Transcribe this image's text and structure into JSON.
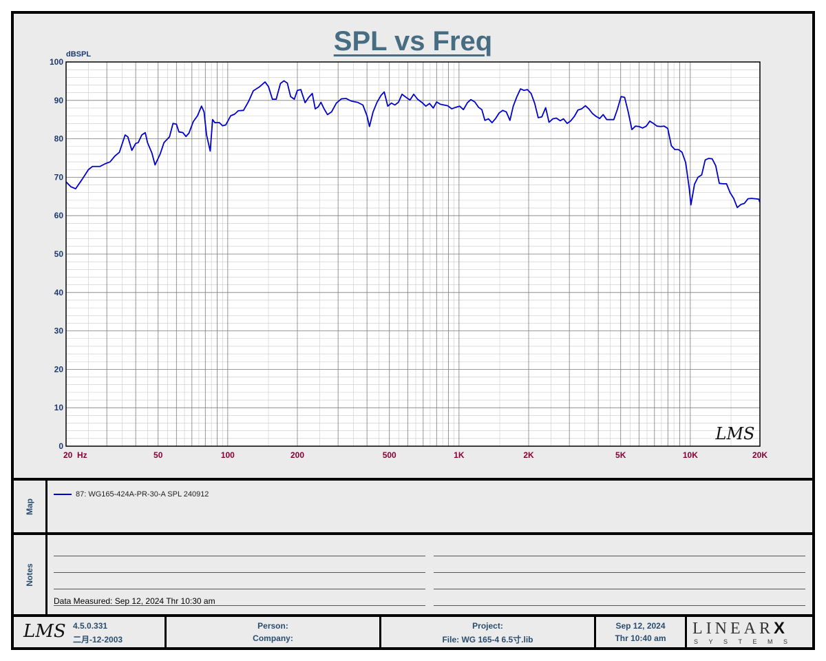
{
  "chart_data": {
    "type": "line",
    "title": "SPL vs Freq",
    "ylabel": "dBSPL",
    "xlabel": "",
    "xscale": "log",
    "xlim": [
      20,
      20000
    ],
    "ylim": [
      0,
      100
    ],
    "grid": true,
    "y_ticks": [
      0,
      10,
      20,
      30,
      40,
      50,
      60,
      70,
      80,
      90,
      100
    ],
    "x_tick_labels": [
      {
        "value": 20,
        "label": "20  Hz"
      },
      {
        "value": 50,
        "label": "50"
      },
      {
        "value": 100,
        "label": "100"
      },
      {
        "value": 200,
        "label": "200"
      },
      {
        "value": 500,
        "label": "500"
      },
      {
        "value": 1000,
        "label": "1K"
      },
      {
        "value": 2000,
        "label": "2K"
      },
      {
        "value": 5000,
        "label": "5K"
      },
      {
        "value": 10000,
        "label": "10K"
      },
      {
        "value": 20000,
        "label": "20K"
      }
    ],
    "series": [
      {
        "name": "87: WG165-424A-PR-30-A SPL 240912",
        "color": "#0000cc",
        "points": [
          [
            20,
            68.8
          ],
          [
            21,
            67.5
          ],
          [
            22,
            67.0
          ],
          [
            23.5,
            69.5
          ],
          [
            25,
            72.0
          ],
          [
            26,
            72.8
          ],
          [
            28,
            72.8
          ],
          [
            29.5,
            73.5
          ],
          [
            31,
            74.0
          ],
          [
            32.5,
            75.5
          ],
          [
            34,
            76.5
          ],
          [
            36,
            81.0
          ],
          [
            37,
            80.5
          ],
          [
            38.5,
            77.0
          ],
          [
            40,
            78.8
          ],
          [
            41,
            79.0
          ],
          [
            42.5,
            81.0
          ],
          [
            44,
            81.6
          ],
          [
            45,
            79.0
          ],
          [
            47,
            76.3
          ],
          [
            48.5,
            73.2
          ],
          [
            51,
            76.0
          ],
          [
            53,
            79.0
          ],
          [
            56,
            80.5
          ],
          [
            58,
            84.0
          ],
          [
            60,
            83.8
          ],
          [
            61.5,
            81.8
          ],
          [
            64,
            81.6
          ],
          [
            66,
            80.6
          ],
          [
            68,
            81.5
          ],
          [
            71,
            84.5
          ],
          [
            74,
            86.0
          ],
          [
            77,
            88.5
          ],
          [
            79,
            87.0
          ],
          [
            81,
            81.0
          ],
          [
            84,
            76.8
          ],
          [
            86,
            85.0
          ],
          [
            88,
            84.2
          ],
          [
            92,
            84.2
          ],
          [
            95,
            83.4
          ],
          [
            98,
            83.6
          ],
          [
            103,
            86.0
          ],
          [
            107,
            86.4
          ],
          [
            111,
            87.3
          ],
          [
            117,
            87.4
          ],
          [
            123,
            89.7
          ],
          [
            129,
            92.5
          ],
          [
            137,
            93.5
          ],
          [
            145,
            94.8
          ],
          [
            150,
            93.6
          ],
          [
            156,
            90.3
          ],
          [
            162,
            90.3
          ],
          [
            169,
            94.4
          ],
          [
            175,
            95.1
          ],
          [
            181,
            94.5
          ],
          [
            187,
            91.0
          ],
          [
            194,
            90.3
          ],
          [
            200,
            92.6
          ],
          [
            207,
            92.8
          ],
          [
            216,
            89.4
          ],
          [
            224,
            90.8
          ],
          [
            232,
            91.8
          ],
          [
            239,
            87.8
          ],
          [
            246,
            88.3
          ],
          [
            253,
            89.5
          ],
          [
            261,
            87.8
          ],
          [
            270,
            86.3
          ],
          [
            281,
            87.0
          ],
          [
            295,
            89.3
          ],
          [
            310,
            90.4
          ],
          [
            325,
            90.5
          ],
          [
            343,
            89.8
          ],
          [
            364,
            89.5
          ],
          [
            384,
            88.8
          ],
          [
            400,
            86.0
          ],
          [
            410,
            83.2
          ],
          [
            425,
            87.0
          ],
          [
            442,
            89.5
          ],
          [
            460,
            91.3
          ],
          [
            475,
            92.2
          ],
          [
            492,
            88.5
          ],
          [
            510,
            89.3
          ],
          [
            528,
            88.8
          ],
          [
            547,
            89.5
          ],
          [
            567,
            91.6
          ],
          [
            590,
            90.8
          ],
          [
            614,
            90.1
          ],
          [
            637,
            91.6
          ],
          [
            662,
            90.3
          ],
          [
            690,
            89.5
          ],
          [
            719,
            88.5
          ],
          [
            746,
            89.2
          ],
          [
            774,
            88.0
          ],
          [
            800,
            89.6
          ],
          [
            830,
            89.0
          ],
          [
            861,
            88.8
          ],
          [
            894,
            88.6
          ],
          [
            930,
            87.8
          ],
          [
            968,
            88.2
          ],
          [
            1006,
            88.5
          ],
          [
            1045,
            87.6
          ],
          [
            1087,
            89.4
          ],
          [
            1125,
            90.2
          ],
          [
            1170,
            89.6
          ],
          [
            1215,
            88.2
          ],
          [
            1255,
            87.6
          ],
          [
            1294,
            84.8
          ],
          [
            1341,
            85.2
          ],
          [
            1389,
            84.2
          ],
          [
            1440,
            85.3
          ],
          [
            1490,
            86.7
          ],
          [
            1545,
            87.4
          ],
          [
            1601,
            87.0
          ],
          [
            1660,
            84.8
          ],
          [
            1716,
            88.5
          ],
          [
            1780,
            91.0
          ],
          [
            1845,
            93.0
          ],
          [
            1910,
            92.6
          ],
          [
            1975,
            92.8
          ],
          [
            2050,
            91.8
          ],
          [
            2125,
            89.2
          ],
          [
            2200,
            85.5
          ],
          [
            2280,
            85.7
          ],
          [
            2370,
            88.1
          ],
          [
            2450,
            84.3
          ],
          [
            2545,
            85.2
          ],
          [
            2635,
            85.4
          ],
          [
            2740,
            84.7
          ],
          [
            2830,
            85.2
          ],
          [
            2935,
            84.0
          ],
          [
            3045,
            84.7
          ],
          [
            3150,
            85.8
          ],
          [
            3270,
            87.5
          ],
          [
            3390,
            87.8
          ],
          [
            3520,
            88.6
          ],
          [
            3640,
            87.8
          ],
          [
            3775,
            86.6
          ],
          [
            3920,
            85.8
          ],
          [
            4060,
            85.3
          ],
          [
            4200,
            86.3
          ],
          [
            4350,
            85.0
          ],
          [
            4510,
            85.0
          ],
          [
            4670,
            85.0
          ],
          [
            4840,
            87.7
          ],
          [
            5020,
            91.0
          ],
          [
            5200,
            90.8
          ],
          [
            5390,
            87.0
          ],
          [
            5590,
            82.4
          ],
          [
            5790,
            83.3
          ],
          [
            6000,
            83.2
          ],
          [
            6220,
            82.8
          ],
          [
            6450,
            83.3
          ],
          [
            6680,
            84.6
          ],
          [
            6920,
            84.0
          ],
          [
            7180,
            83.3
          ],
          [
            7440,
            83.2
          ],
          [
            7710,
            83.3
          ],
          [
            7990,
            82.7
          ],
          [
            8280,
            78.2
          ],
          [
            8580,
            77.2
          ],
          [
            8890,
            77.2
          ],
          [
            9210,
            76.5
          ],
          [
            9550,
            73.8
          ],
          [
            9900,
            67.0
          ],
          [
            10060,
            62.8
          ],
          [
            10430,
            68.2
          ],
          [
            10800,
            70.0
          ],
          [
            11200,
            70.6
          ],
          [
            11600,
            74.5
          ],
          [
            12000,
            74.9
          ],
          [
            12430,
            74.8
          ],
          [
            12880,
            73.0
          ],
          [
            13350,
            68.4
          ],
          [
            13840,
            68.3
          ],
          [
            14340,
            68.3
          ],
          [
            14860,
            66.0
          ],
          [
            15400,
            64.5
          ],
          [
            15960,
            62.1
          ],
          [
            16540,
            62.9
          ],
          [
            17140,
            63.2
          ],
          [
            17760,
            64.4
          ],
          [
            18400,
            64.5
          ],
          [
            19070,
            64.4
          ],
          [
            19760,
            64.3
          ],
          [
            20000,
            63.5
          ]
        ]
      }
    ]
  },
  "map": {
    "label": "Map",
    "legend_entry": "87: WG165-424A-PR-30-A SPL 240912"
  },
  "notes": {
    "label": "Notes",
    "data_measured": "Data Measured: Sep 12, 2024  Thr 10:30 am"
  },
  "watermark": "LMS",
  "footer": {
    "logo": "LMS",
    "version": "4.5.0.331",
    "build_date": "二月-12-2003",
    "person_label": "Person:",
    "company_label": "Company:",
    "project_label": "Project:",
    "file_label": "File: WG 165-4 6.5寸.lib",
    "date": "Sep 12, 2024",
    "time": "Thr 10:40 am",
    "brand_main": "LINEAR",
    "brand_x": "X",
    "brand_sub": "SYSTEMS"
  },
  "colors": {
    "title": "#466d82",
    "curve": "#0000cc",
    "y_tick_labels": "#1a3a6e",
    "x_tick_labels": "#8b0033",
    "panel_background": "#ebebeb"
  }
}
